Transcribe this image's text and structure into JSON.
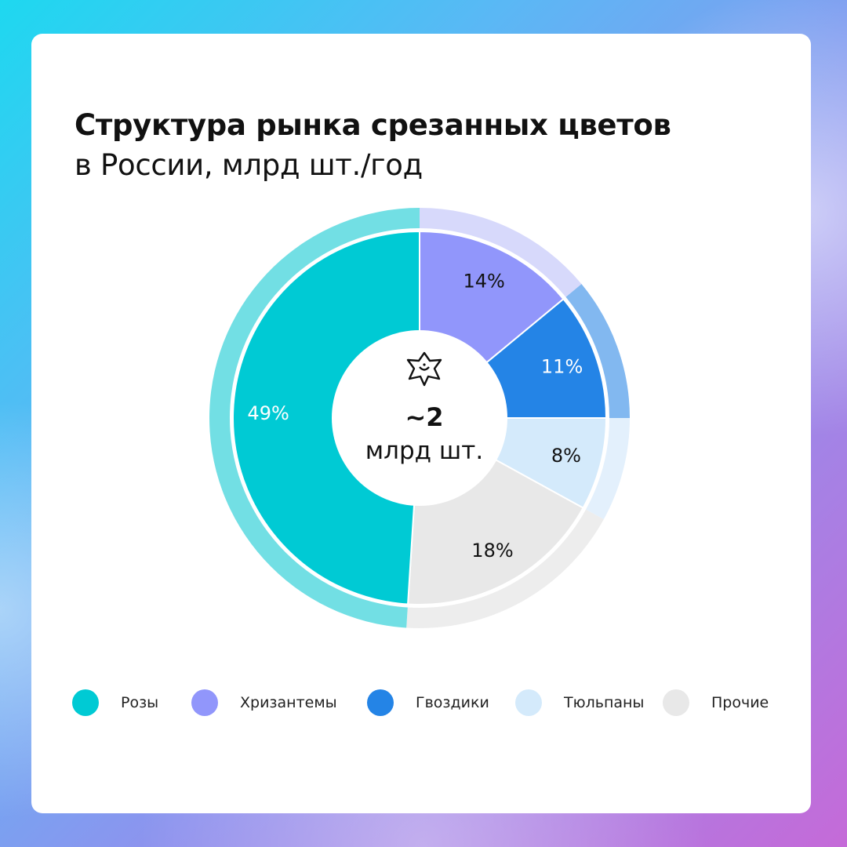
{
  "chart_data": {
    "type": "pie",
    "title": "Структура рынка срезанных цветов",
    "subtitle": "в России, млрд шт./год",
    "slices": [
      {
        "label": "Розы",
        "value": 49,
        "display": "49%",
        "color": "#00cad4",
        "ring_color": "#72dfe4",
        "text_color": "#ffffff"
      },
      {
        "label": "Хризантемы",
        "value": 14,
        "display": "14%",
        "color": "#9196fb",
        "ring_color": "#d7d9fb",
        "text_color": "#111111"
      },
      {
        "label": "Гвоздики",
        "value": 11,
        "display": "11%",
        "color": "#2484e6",
        "ring_color": "#82b8f0",
        "text_color": "#ffffff"
      },
      {
        "label": "Тюльпаны",
        "value": 8,
        "display": "8%",
        "color": "#d4eafb",
        "ring_color": "#e3f0fc",
        "text_color": "#111111"
      },
      {
        "label": "Прочие",
        "value": 18,
        "display": "18%",
        "color": "#e8e8e8",
        "ring_color": "#ededed",
        "text_color": "#111111"
      }
    ],
    "center_value": "~2",
    "center_unit": "млрд шт.",
    "center_icon": "flower-icon",
    "legend_position": "bottom"
  }
}
